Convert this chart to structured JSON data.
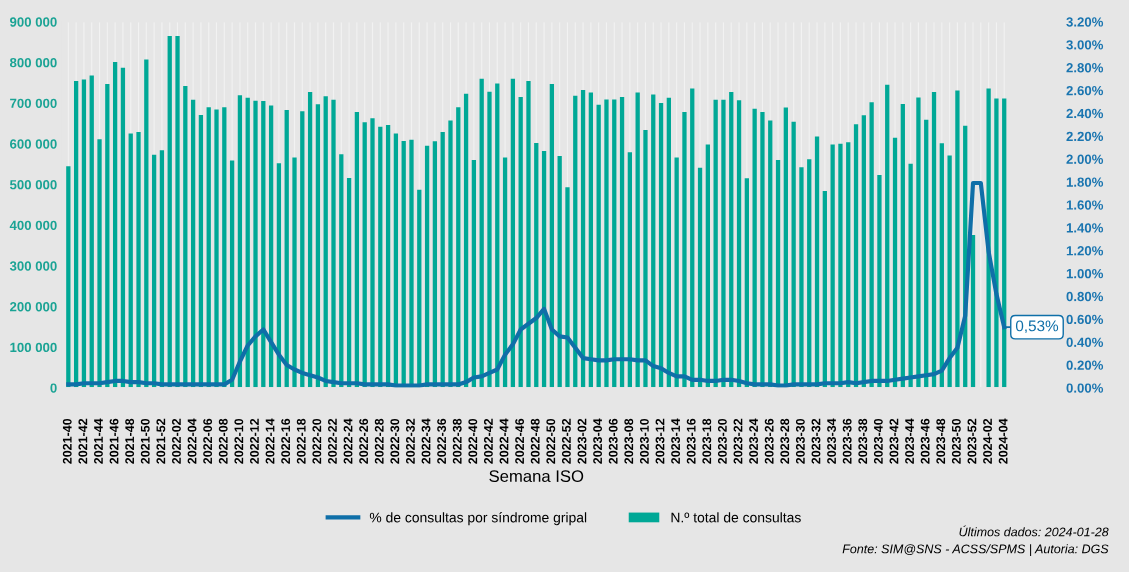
{
  "chart_data": {
    "type": "bar",
    "categories": [
      "2021-40",
      null,
      "2021-42",
      null,
      "2021-44",
      null,
      "2021-46",
      null,
      "2021-48",
      null,
      "2021-50",
      null,
      "2021-52",
      null,
      "2022-02",
      null,
      "2022-04",
      null,
      "2022-06",
      null,
      "2022-08",
      null,
      "2022-10",
      null,
      "2022-12",
      null,
      "2022-14",
      null,
      "2022-16",
      null,
      "2022-18",
      null,
      "2022-20",
      null,
      "2022-22",
      null,
      "2022-24",
      null,
      "2022-26",
      null,
      "2022-28",
      null,
      "2022-30",
      null,
      "2022-32",
      null,
      "2022-34",
      null,
      "2022-36",
      null,
      "2022-38",
      null,
      "2022-40",
      null,
      "2022-42",
      null,
      "2022-44",
      null,
      "2022-46",
      null,
      "2022-48",
      null,
      "2022-50",
      null,
      "2022-52",
      null,
      "2023-02",
      null,
      "2023-04",
      null,
      "2023-06",
      null,
      "2023-08",
      null,
      "2023-10",
      null,
      "2023-12",
      null,
      "2023-14",
      null,
      "2023-16",
      null,
      "2023-18",
      null,
      "2023-20",
      null,
      "2023-22",
      null,
      "2023-24",
      null,
      "2023-26",
      null,
      "2023-28",
      null,
      "2023-30",
      null,
      "2023-32",
      null,
      "2023-34",
      null,
      "2023-36",
      null,
      "2023-38",
      null,
      "2023-40",
      null,
      "2023-42",
      null,
      "2023-44",
      null,
      "2023-46",
      null,
      "2023-48",
      null,
      "2023-50",
      null,
      "2023-52",
      null,
      "2024-02",
      null,
      "2024-04"
    ],
    "series": [
      {
        "name": "% de consultas por síndrome gripal",
        "type": "line",
        "axis": "y2",
        "color": "#0f6fa8",
        "values": [
          0.03,
          0.03,
          0.04,
          0.04,
          0.04,
          0.05,
          0.06,
          0.06,
          0.05,
          0.05,
          0.04,
          0.04,
          0.03,
          0.03,
          0.03,
          0.03,
          0.03,
          0.03,
          0.03,
          0.03,
          0.03,
          0.07,
          0.23,
          0.37,
          0.45,
          0.51,
          0.4,
          0.29,
          0.2,
          0.16,
          0.13,
          0.11,
          0.09,
          0.06,
          0.05,
          0.04,
          0.04,
          0.04,
          0.03,
          0.03,
          0.03,
          0.03,
          0.02,
          0.02,
          0.02,
          0.02,
          0.03,
          0.03,
          0.03,
          0.03,
          0.03,
          0.05,
          0.09,
          0.1,
          0.13,
          0.16,
          0.29,
          0.38,
          0.51,
          0.56,
          0.61,
          0.69,
          0.51,
          0.45,
          0.44,
          0.35,
          0.26,
          0.25,
          0.24,
          0.24,
          0.25,
          0.25,
          0.25,
          0.24,
          0.24,
          0.19,
          0.17,
          0.13,
          0.1,
          0.1,
          0.07,
          0.07,
          0.06,
          0.06,
          0.07,
          0.07,
          0.06,
          0.04,
          0.03,
          0.03,
          0.03,
          0.02,
          0.02,
          0.03,
          0.03,
          0.03,
          0.03,
          0.04,
          0.04,
          0.04,
          0.05,
          0.04,
          0.05,
          0.06,
          0.06,
          0.06,
          0.07,
          0.08,
          0.09,
          0.1,
          0.11,
          0.12,
          0.15,
          0.26,
          0.35,
          0.63,
          1.79,
          1.79,
          1.19,
          0.82,
          0.53
        ]
      },
      {
        "name": "N.º total de consultas",
        "color": "#00a896",
        "values": [
          545000,
          754000,
          758000,
          768000,
          611000,
          747000,
          801000,
          787000,
          625000,
          629000,
          807000,
          573000,
          584000,
          865000,
          865000,
          742000,
          708000,
          671000,
          690000,
          684000,
          690000,
          559000,
          719000,
          713000,
          706000,
          705000,
          694000,
          552000,
          683000,
          566000,
          680000,
          727000,
          697000,
          717000,
          708000,
          574000,
          516000,
          678000,
          653000,
          663000,
          642000,
          646000,
          625000,
          607000,
          610000,
          487000,
          595000,
          606000,
          629000,
          657000,
          690000,
          723000,
          560000,
          760000,
          728000,
          748000,
          566000,
          760000,
          715000,
          754000,
          602000,
          582000,
          747000,
          570000,
          493000,
          718000,
          732000,
          726000,
          696000,
          709000,
          709000,
          715000,
          579000,
          726000,
          634000,
          721000,
          700000,
          713000,
          566000,
          678000,
          736000,
          541000,
          598000,
          708000,
          708000,
          727000,
          707000,
          515000,
          686000,
          678000,
          657000,
          560000,
          689000,
          654000,
          542000,
          562000,
          618000,
          484000,
          598000,
          600000,
          604000,
          648000,
          670000,
          702000,
          523000,
          745000,
          615000,
          698000,
          551000,
          714000,
          659000,
          727000,
          601000,
          571000,
          731000,
          644000,
          376000,
          null,
          736000,
          711000,
          711000
        ]
      }
    ],
    "xlabel": "Semana ISO",
    "ylim": [
      0,
      900000
    ],
    "yticks": [
      0,
      {
        "value": 100000,
        "label": "100 000"
      },
      {
        "value": 200000,
        "label": "200 000"
      },
      {
        "value": 300000,
        "label": "300 000"
      },
      {
        "value": 400000,
        "label": "400 000"
      },
      {
        "value": 500000,
        "label": "500 000"
      },
      {
        "value": 600000,
        "label": "600 000"
      },
      {
        "value": 700000,
        "label": "700 000"
      },
      {
        "value": 800000,
        "label": "800 000"
      },
      {
        "value": 900000,
        "label": "900 000"
      }
    ],
    "y2lim": [
      0,
      3.2
    ],
    "y2ticks": [
      {
        "value": 0,
        "label": "0.00%"
      },
      {
        "value": 0.2,
        "label": "0.20%"
      },
      {
        "value": 0.4,
        "label": "0.40%"
      },
      {
        "value": 0.6,
        "label": "0.60%"
      },
      {
        "value": 0.8,
        "label": "0.80%"
      },
      {
        "value": 1.0,
        "label": "1.00%"
      },
      {
        "value": 1.2,
        "label": "1.20%"
      },
      {
        "value": 1.4,
        "label": "1.40%"
      },
      {
        "value": 1.6,
        "label": "1.60%"
      },
      {
        "value": 1.8,
        "label": "1.80%"
      },
      {
        "value": 2.0,
        "label": "2.00%"
      },
      {
        "value": 2.2,
        "label": "2.20%"
      },
      {
        "value": 2.4,
        "label": "2.40%"
      },
      {
        "value": 2.6,
        "label": "2.60%"
      },
      {
        "value": 2.8,
        "label": "2.80%"
      },
      {
        "value": 3.0,
        "label": "3.00%"
      },
      {
        "value": 3.2,
        "label": "3.20%"
      }
    ],
    "grid": "x",
    "legend": "bottom",
    "annotations": [
      "0,53%",
      "Últimos dados: 2024-01-28",
      "Fonte: SIM@SNS - ACSS/SPMS | Autoria: DGS"
    ]
  }
}
